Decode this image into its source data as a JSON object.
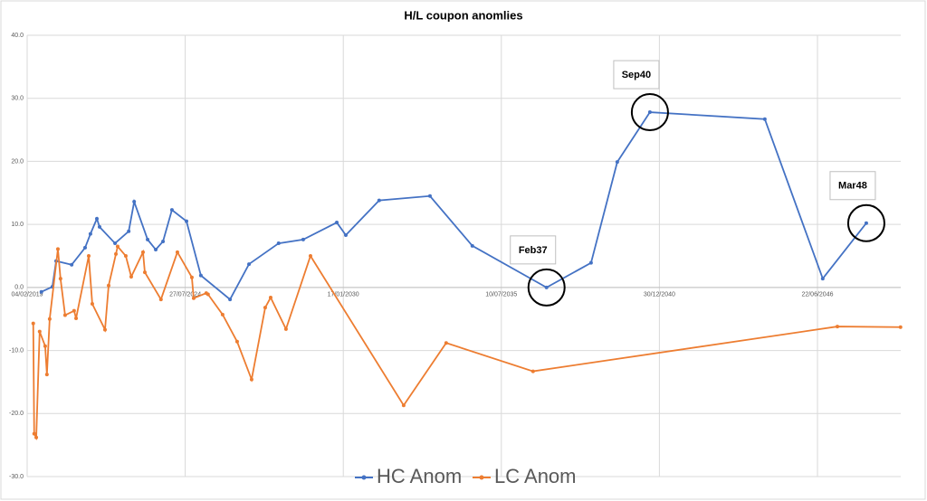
{
  "chart_data": {
    "type": "line",
    "title": "H/L coupon anomlies",
    "xlim": [
      "2019-02-04",
      "2049-05-11"
    ],
    "xticks": [
      {
        "value": "2019-02-04",
        "label": "04/02/2019"
      },
      {
        "value": "2024-07-27",
        "label": "27/07/2024"
      },
      {
        "value": "2030-01-17",
        "label": "17/01/2030"
      },
      {
        "value": "2035-07-10",
        "label": "10/07/2035"
      },
      {
        "value": "2040-12-30",
        "label": "30/12/2040"
      },
      {
        "value": "2046-06-22",
        "label": "22/06/2046"
      }
    ],
    "ylim": [
      -30,
      40
    ],
    "yticks": [
      {
        "value": -30,
        "label": "-30.0"
      },
      {
        "value": -20,
        "label": "-20.0"
      },
      {
        "value": -10,
        "label": "-10.0"
      },
      {
        "value": 0,
        "label": "0.0"
      },
      {
        "value": 10,
        "label": "10.0"
      },
      {
        "value": 20,
        "label": "20.0"
      },
      {
        "value": 30,
        "label": "30.0"
      },
      {
        "value": 40,
        "label": "40.0"
      }
    ],
    "grid": true,
    "legend": "bottom",
    "series": [
      {
        "name": "HC Anom",
        "color": "#4472c4",
        "x": [
          "2019-08-03",
          "2019-12-20",
          "2020-02-06",
          "2020-08-20",
          "2021-02-06",
          "2021-04-15",
          "2021-07-05",
          "2021-08-08",
          "2022-02-20",
          "2022-08-12",
          "2022-10-20",
          "2023-04-08",
          "2023-07-20",
          "2023-10-20",
          "2024-02-10",
          "2024-08-12",
          "2025-02-10",
          "2026-02-14",
          "2026-10-12",
          "2027-10-22",
          "2028-08-28",
          "2029-10-27",
          "2030-02-18",
          "2031-04-16",
          "2033-01-18",
          "2034-07-08",
          "2037-02-01",
          "2038-08-18",
          "2039-07-16",
          "2040-09-01",
          "2044-08-25",
          "2046-08-28",
          "2048-03-01"
        ],
        "values": [
          -0.7,
          0.1,
          4.2,
          3.6,
          6.3,
          8.5,
          10.9,
          9.6,
          7.0,
          8.9,
          13.6,
          7.6,
          6.0,
          7.3,
          12.3,
          10.5,
          1.9,
          -1.9,
          3.7,
          7.0,
          7.6,
          10.3,
          8.3,
          13.8,
          14.5,
          6.6,
          0.0,
          3.9,
          19.9,
          27.8,
          26.7,
          1.4,
          10.2
        ],
        "point_labels": [
          null,
          null,
          null,
          null,
          null,
          null,
          null,
          null,
          null,
          null,
          null,
          null,
          null,
          null,
          null,
          null,
          null,
          null,
          null,
          null,
          null,
          null,
          null,
          null,
          null,
          null,
          "Feb37",
          null,
          null,
          "Sep40",
          null,
          null,
          "Mar48"
        ]
      },
      {
        "name": "LC Anom",
        "color": "#ed7d31",
        "x": [
          "2019-04-22",
          "2019-05-04",
          "2019-05-30",
          "2019-07-12",
          "2019-09-20",
          "2019-10-12",
          "2019-11-16",
          "2020-02-28",
          "2020-04-01",
          "2020-05-29",
          "2020-09-20",
          "2020-10-15",
          "2021-03-24",
          "2021-05-08",
          "2021-10-16",
          "2021-12-01",
          "2022-03-03",
          "2022-03-25",
          "2022-07-06",
          "2022-09-13",
          "2023-02-09",
          "2023-03-04",
          "2023-09-24",
          "2024-04-19",
          "2024-10-19",
          "2024-11-11",
          "2025-04-19",
          "2025-05-12",
          "2025-11-12",
          "2026-05-15",
          "2026-11-14",
          "2027-05-05",
          "2027-07-13",
          "2028-01-23",
          "2028-11-28",
          "2032-02-20",
          "2033-08-11",
          "2036-08-14",
          "2047-03-01",
          "2049-05-08"
        ],
        "values": [
          -5.7,
          -23.2,
          -23.8,
          -7.0,
          -9.3,
          -13.8,
          -5.0,
          6.1,
          1.4,
          -4.4,
          -3.7,
          -4.9,
          5.0,
          -2.6,
          -6.7,
          0.3,
          5.3,
          6.5,
          5.0,
          1.7,
          5.6,
          2.4,
          -1.9,
          5.6,
          1.6,
          -1.7,
          -0.9,
          -1.1,
          -4.3,
          -8.6,
          -14.6,
          -3.2,
          -1.6,
          -6.6,
          5.0,
          -18.7,
          -8.8,
          -13.3,
          -6.2,
          -6.3
        ]
      }
    ]
  }
}
